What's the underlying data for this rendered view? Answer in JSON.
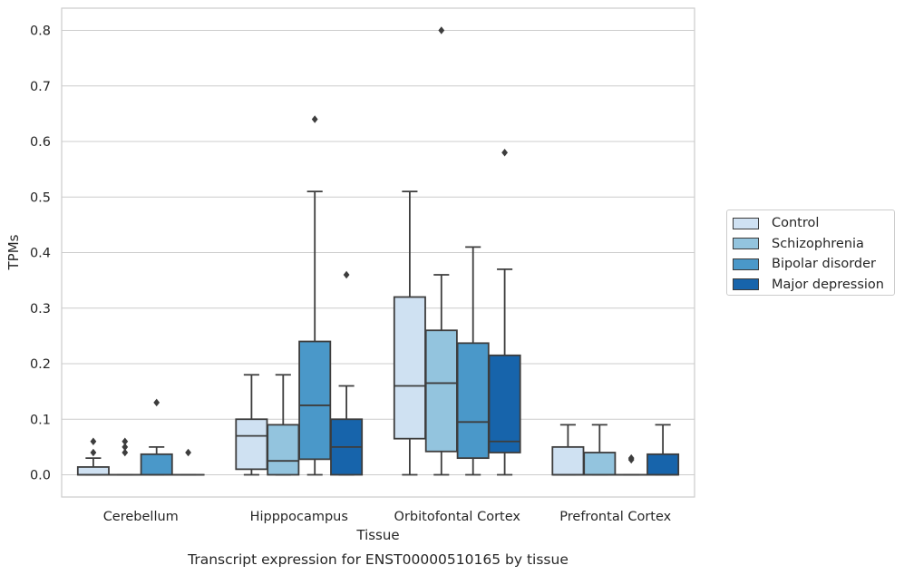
{
  "chart_data": {
    "type": "box",
    "title": "Transcript expression for ENST00000510165 by tissue",
    "xlabel": "Tissue",
    "ylabel": "TPMs",
    "ylim": [
      -0.04,
      0.84
    ],
    "yticks": [
      "0.0",
      "0.1",
      "0.2",
      "0.3",
      "0.4",
      "0.5",
      "0.6",
      "0.7",
      "0.8"
    ],
    "grid": "horizontal",
    "legend_position": "right",
    "categories": [
      "Cerebellum",
      "Hipppocampus",
      "Orbitofontal Cortex",
      "Prefrontal Cortex"
    ],
    "series": [
      {
        "name": "Control",
        "color": "#cfe1f2",
        "boxes": [
          {
            "whislo": 0.0,
            "q1": 0.0,
            "med": 0.0,
            "q3": 0.014,
            "whishi": 0.03,
            "fliers": [
              0.04,
              0.06
            ]
          },
          {
            "whislo": 0.0,
            "q1": 0.01,
            "med": 0.07,
            "q3": 0.1,
            "whishi": 0.18,
            "fliers": []
          },
          {
            "whislo": 0.0,
            "q1": 0.065,
            "med": 0.16,
            "q3": 0.32,
            "whishi": 0.51,
            "fliers": []
          },
          {
            "whislo": 0.0,
            "q1": 0.0,
            "med": 0.0,
            "q3": 0.05,
            "whishi": 0.09,
            "fliers": []
          }
        ]
      },
      {
        "name": "Schizophrenia",
        "color": "#93c4de",
        "boxes": [
          {
            "whislo": 0.0,
            "q1": 0.0,
            "med": 0.0,
            "q3": 0.0,
            "whishi": 0.0,
            "fliers": [
              0.04,
              0.05,
              0.06
            ]
          },
          {
            "whislo": 0.0,
            "q1": 0.0,
            "med": 0.025,
            "q3": 0.09,
            "whishi": 0.18,
            "fliers": []
          },
          {
            "whislo": 0.0,
            "q1": 0.042,
            "med": 0.165,
            "q3": 0.26,
            "whishi": 0.36,
            "fliers": [
              0.8
            ]
          },
          {
            "whislo": 0.0,
            "q1": 0.0,
            "med": 0.0,
            "q3": 0.04,
            "whishi": 0.09,
            "fliers": []
          }
        ]
      },
      {
        "name": "Bipolar disorder",
        "color": "#4a98c9",
        "boxes": [
          {
            "whislo": 0.0,
            "q1": 0.0,
            "med": 0.0,
            "q3": 0.037,
            "whishi": 0.05,
            "fliers": [
              0.13
            ]
          },
          {
            "whislo": 0.0,
            "q1": 0.028,
            "med": 0.125,
            "q3": 0.24,
            "whishi": 0.51,
            "fliers": [
              0.64
            ]
          },
          {
            "whislo": 0.0,
            "q1": 0.03,
            "med": 0.095,
            "q3": 0.237,
            "whishi": 0.41,
            "fliers": []
          },
          {
            "whislo": 0.0,
            "q1": 0.0,
            "med": 0.0,
            "q3": 0.0,
            "whishi": 0.0,
            "fliers": [
              0.03,
              0.027
            ]
          }
        ]
      },
      {
        "name": "Major depression",
        "color": "#1764ab",
        "boxes": [
          {
            "whislo": 0.0,
            "q1": 0.0,
            "med": 0.0,
            "q3": 0.0,
            "whishi": 0.0,
            "fliers": [
              0.04
            ]
          },
          {
            "whislo": 0.0,
            "q1": 0.0,
            "med": 0.05,
            "q3": 0.1,
            "whishi": 0.16,
            "fliers": [
              0.36
            ]
          },
          {
            "whislo": 0.0,
            "q1": 0.04,
            "med": 0.06,
            "q3": 0.215,
            "whishi": 0.37,
            "fliers": [
              0.58
            ]
          },
          {
            "whislo": 0.0,
            "q1": 0.0,
            "med": 0.0,
            "q3": 0.037,
            "whishi": 0.09,
            "fliers": []
          }
        ]
      }
    ]
  }
}
